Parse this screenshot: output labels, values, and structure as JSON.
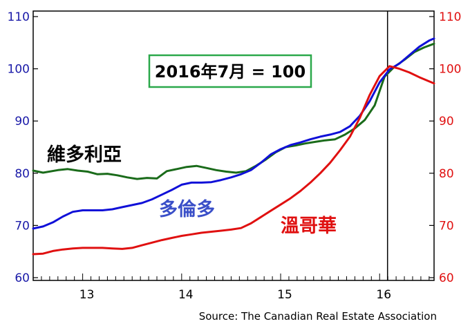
{
  "chart_data": {
    "type": "line",
    "y_left": {
      "ticks": [
        60,
        70,
        80,
        90,
        100,
        110
      ],
      "range": [
        60,
        110
      ]
    },
    "y_right": {
      "ticks": [
        60,
        70,
        80,
        90,
        100,
        110
      ],
      "range": [
        60,
        110
      ]
    },
    "x_axis": {
      "tick_labels": [
        {
          "label": "13",
          "t": 2013.0
        },
        {
          "label": "14",
          "t": 2014.0
        },
        {
          "label": "15",
          "t": 2015.0
        },
        {
          "label": "16",
          "t": 2016.0
        }
      ],
      "range": [
        2012.5,
        2016.55
      ]
    },
    "annotation": "2016年7月 = 100",
    "reference_line_t": 2016.08,
    "source": "Source:  The Canadian Real Estate Association",
    "grid": false,
    "series": [
      {
        "name": "維多利亞",
        "color": "#1a6b1a",
        "axis": "left",
        "points": [
          [
            2012.5,
            80.5
          ],
          [
            2012.6,
            80.1
          ],
          [
            2012.75,
            80.6
          ],
          [
            2012.85,
            80.8
          ],
          [
            2012.95,
            80.5
          ],
          [
            2013.05,
            80.3
          ],
          [
            2013.15,
            79.8
          ],
          [
            2013.25,
            79.9
          ],
          [
            2013.35,
            79.6
          ],
          [
            2013.45,
            79.2
          ],
          [
            2013.55,
            78.9
          ],
          [
            2013.65,
            79.1
          ],
          [
            2013.75,
            79.0
          ],
          [
            2013.85,
            80.4
          ],
          [
            2013.95,
            80.8
          ],
          [
            2014.05,
            81.2
          ],
          [
            2014.15,
            81.4
          ],
          [
            2014.25,
            81.0
          ],
          [
            2014.35,
            80.6
          ],
          [
            2014.45,
            80.3
          ],
          [
            2014.55,
            80.1
          ],
          [
            2014.65,
            80.4
          ],
          [
            2014.75,
            81.4
          ],
          [
            2014.85,
            82.6
          ],
          [
            2014.95,
            84.0
          ],
          [
            2015.05,
            85.0
          ],
          [
            2015.15,
            85.3
          ],
          [
            2015.25,
            85.7
          ],
          [
            2015.35,
            86.0
          ],
          [
            2015.45,
            86.3
          ],
          [
            2015.55,
            86.5
          ],
          [
            2015.65,
            87.4
          ],
          [
            2015.75,
            88.6
          ],
          [
            2015.85,
            90.2
          ],
          [
            2015.95,
            93.0
          ],
          [
            2016.05,
            98.5
          ],
          [
            2016.15,
            100.4
          ],
          [
            2016.25,
            101.7
          ],
          [
            2016.35,
            103.2
          ],
          [
            2016.45,
            104.1
          ],
          [
            2016.55,
            104.8
          ]
        ]
      },
      {
        "name": "多倫多",
        "color": "#1010d8",
        "axis": "left",
        "points": [
          [
            2012.5,
            69.4
          ],
          [
            2012.6,
            69.8
          ],
          [
            2012.7,
            70.6
          ],
          [
            2012.8,
            71.7
          ],
          [
            2012.9,
            72.6
          ],
          [
            2013.0,
            72.9
          ],
          [
            2013.1,
            72.9
          ],
          [
            2013.2,
            72.9
          ],
          [
            2013.3,
            73.1
          ],
          [
            2013.4,
            73.5
          ],
          [
            2013.5,
            73.9
          ],
          [
            2013.6,
            74.3
          ],
          [
            2013.7,
            75.0
          ],
          [
            2013.8,
            75.9
          ],
          [
            2013.9,
            76.8
          ],
          [
            2014.0,
            77.8
          ],
          [
            2014.1,
            78.2
          ],
          [
            2014.2,
            78.2
          ],
          [
            2014.3,
            78.3
          ],
          [
            2014.4,
            78.7
          ],
          [
            2014.5,
            79.2
          ],
          [
            2014.6,
            79.8
          ],
          [
            2014.7,
            80.6
          ],
          [
            2014.8,
            82.0
          ],
          [
            2014.9,
            83.6
          ],
          [
            2015.0,
            84.6
          ],
          [
            2015.1,
            85.4
          ],
          [
            2015.2,
            85.9
          ],
          [
            2015.3,
            86.5
          ],
          [
            2015.4,
            87.0
          ],
          [
            2015.5,
            87.4
          ],
          [
            2015.6,
            87.9
          ],
          [
            2015.7,
            89.0
          ],
          [
            2015.8,
            91.0
          ],
          [
            2015.9,
            93.8
          ],
          [
            2016.0,
            97.4
          ],
          [
            2016.1,
            99.9
          ],
          [
            2016.2,
            101.0
          ],
          [
            2016.3,
            102.6
          ],
          [
            2016.4,
            104.2
          ],
          [
            2016.5,
            105.4
          ],
          [
            2016.55,
            105.8
          ]
        ]
      },
      {
        "name": "溫哥華",
        "color": "#e01010",
        "axis": "right",
        "points": [
          [
            2012.5,
            64.5
          ],
          [
            2012.6,
            64.6
          ],
          [
            2012.7,
            65.1
          ],
          [
            2012.8,
            65.4
          ],
          [
            2012.9,
            65.6
          ],
          [
            2013.0,
            65.7
          ],
          [
            2013.1,
            65.7
          ],
          [
            2013.2,
            65.7
          ],
          [
            2013.3,
            65.6
          ],
          [
            2013.4,
            65.5
          ],
          [
            2013.5,
            65.7
          ],
          [
            2013.6,
            66.2
          ],
          [
            2013.7,
            66.7
          ],
          [
            2013.8,
            67.2
          ],
          [
            2013.9,
            67.6
          ],
          [
            2014.0,
            68.0
          ],
          [
            2014.1,
            68.3
          ],
          [
            2014.2,
            68.6
          ],
          [
            2014.3,
            68.8
          ],
          [
            2014.4,
            69.0
          ],
          [
            2014.5,
            69.2
          ],
          [
            2014.6,
            69.5
          ],
          [
            2014.7,
            70.4
          ],
          [
            2014.8,
            71.6
          ],
          [
            2014.9,
            72.8
          ],
          [
            2015.0,
            74.0
          ],
          [
            2015.1,
            75.2
          ],
          [
            2015.2,
            76.6
          ],
          [
            2015.3,
            78.2
          ],
          [
            2015.4,
            80.0
          ],
          [
            2015.5,
            82.0
          ],
          [
            2015.6,
            84.4
          ],
          [
            2015.7,
            87.0
          ],
          [
            2015.8,
            90.6
          ],
          [
            2015.9,
            95.0
          ],
          [
            2016.0,
            98.6
          ],
          [
            2016.1,
            100.5
          ],
          [
            2016.2,
            100.0
          ],
          [
            2016.3,
            99.3
          ],
          [
            2016.4,
            98.4
          ],
          [
            2016.5,
            97.6
          ],
          [
            2016.55,
            97.2
          ]
        ]
      }
    ]
  }
}
